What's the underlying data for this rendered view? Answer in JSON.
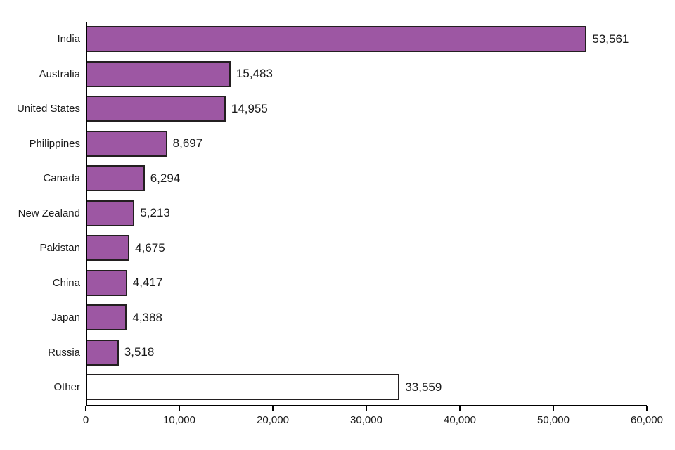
{
  "chart_data": {
    "type": "bar",
    "orientation": "horizontal",
    "title": "",
    "xlabel": "",
    "ylabel": "",
    "grid": false,
    "legend": "none",
    "categories": [
      "India",
      "Australia",
      "United States",
      "Philippines",
      "Canada",
      "New Zealand",
      "Pakistan",
      "China",
      "Japan",
      "Russia",
      "Other"
    ],
    "values": [
      53561,
      15483,
      14955,
      8697,
      6294,
      5213,
      4675,
      4417,
      4388,
      3518,
      33559
    ],
    "value_labels": [
      "53,561",
      "15,483",
      "14,955",
      "8,697",
      "6,294",
      "5,213",
      "4,675",
      "4,417",
      "4,388",
      "3,518",
      "33,559"
    ],
    "bar_styles": [
      "filled",
      "filled",
      "filled",
      "filled",
      "filled",
      "filled",
      "filled",
      "filled",
      "filled",
      "filled",
      "outline"
    ],
    "x_ticks": [
      "0",
      "10,000",
      "20,000",
      "30,000",
      "40,000",
      "50,000",
      "60,000"
    ],
    "xlim": [
      0,
      60000
    ]
  },
  "colors": {
    "bar_fill": "#9d57a3",
    "bar_outline_fill": "#ffffff",
    "bar_border": "#231f20",
    "axis": "#000000",
    "text": "#1a1a1a"
  }
}
